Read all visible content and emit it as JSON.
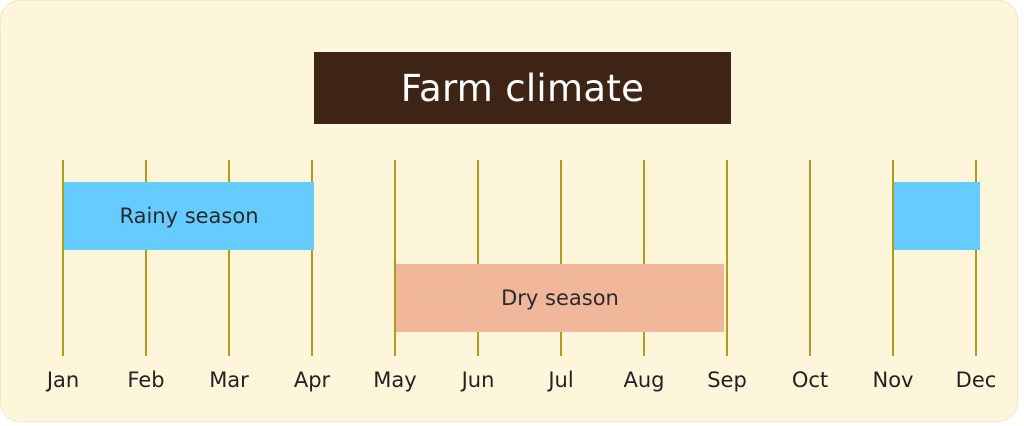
{
  "title": "Farm climate",
  "months": [
    "Jan",
    "Feb",
    "Mar",
    "Apr",
    "May",
    "Jun",
    "Jul",
    "Aug",
    "Sep",
    "Oct",
    "Nov",
    "Dec"
  ],
  "seasons": [
    {
      "label": "Rainy season",
      "start_month": "Jan",
      "end_month": "Apr",
      "color": "#66ccff"
    },
    {
      "label": "Dry season",
      "start_month": "May",
      "end_month": "Sep",
      "color": "#f0b79b"
    },
    {
      "label": "",
      "start_month": "Nov",
      "end_month": "Dec",
      "color": "#66ccff"
    }
  ]
}
